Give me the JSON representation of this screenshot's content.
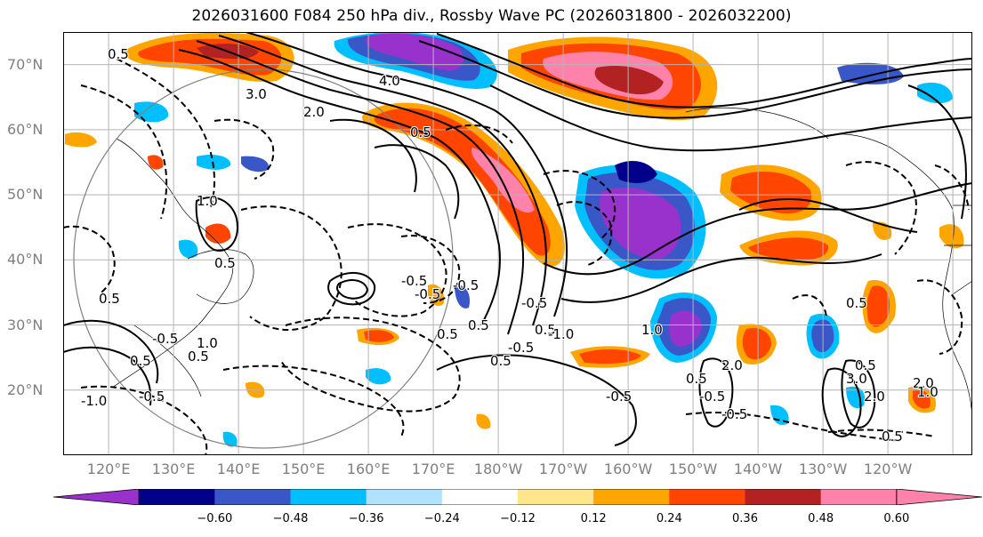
{
  "title": "2026031600 F084 250 hPa div., Rossby Wave PC (2026031800 - 2026032200)",
  "lat_ticks": [
    "70°N",
    "60°N",
    "50°N",
    "40°N",
    "30°N",
    "20°N"
  ],
  "lon_ticks": [
    "120°E",
    "130°E",
    "140°E",
    "150°E",
    "160°E",
    "170°E",
    "180°W",
    "170°W",
    "160°W",
    "150°W",
    "140°W",
    "130°W",
    "120°W"
  ],
  "map_extent": {
    "lon_min": 113,
    "lon_max": 253,
    "lat_min": 10,
    "lat_max": 75
  },
  "colorbar": {
    "colors": [
      "#9932cc",
      "#00008b",
      "#3a57c8",
      "#00bfff",
      "#b0e2ff",
      "#ffffff",
      "#ffe68a",
      "#ffa500",
      "#ff4500",
      "#b22222",
      "#ff82ab",
      "#ff82ab"
    ],
    "tick_labels": [
      "−0.60",
      "−0.48",
      "−0.36",
      "−0.24",
      "−0.12",
      "0.12",
      "0.24",
      "0.36",
      "0.48",
      "0.60"
    ],
    "extend": "both"
  },
  "contour_labels": [
    "0.5",
    "3.0",
    "2.0",
    "4.0",
    "0.5",
    "1.0",
    "0.5",
    "-0.5",
    "-0.5",
    "-0.5",
    "0.5",
    "-0.5",
    "1.0",
    "0.5",
    "0.5",
    "-0.5",
    "-1.0",
    "0.5",
    "-0.5",
    "0.5",
    "-1.0",
    "-0.5",
    "0.5",
    "-0.5",
    "1.0",
    "0.5",
    "2.0",
    "-0.5",
    "-0.5",
    "0.5",
    "0.5",
    "3.0",
    "2.0",
    "2.0",
    "1.0",
    "0.5",
    "0.5"
  ]
}
